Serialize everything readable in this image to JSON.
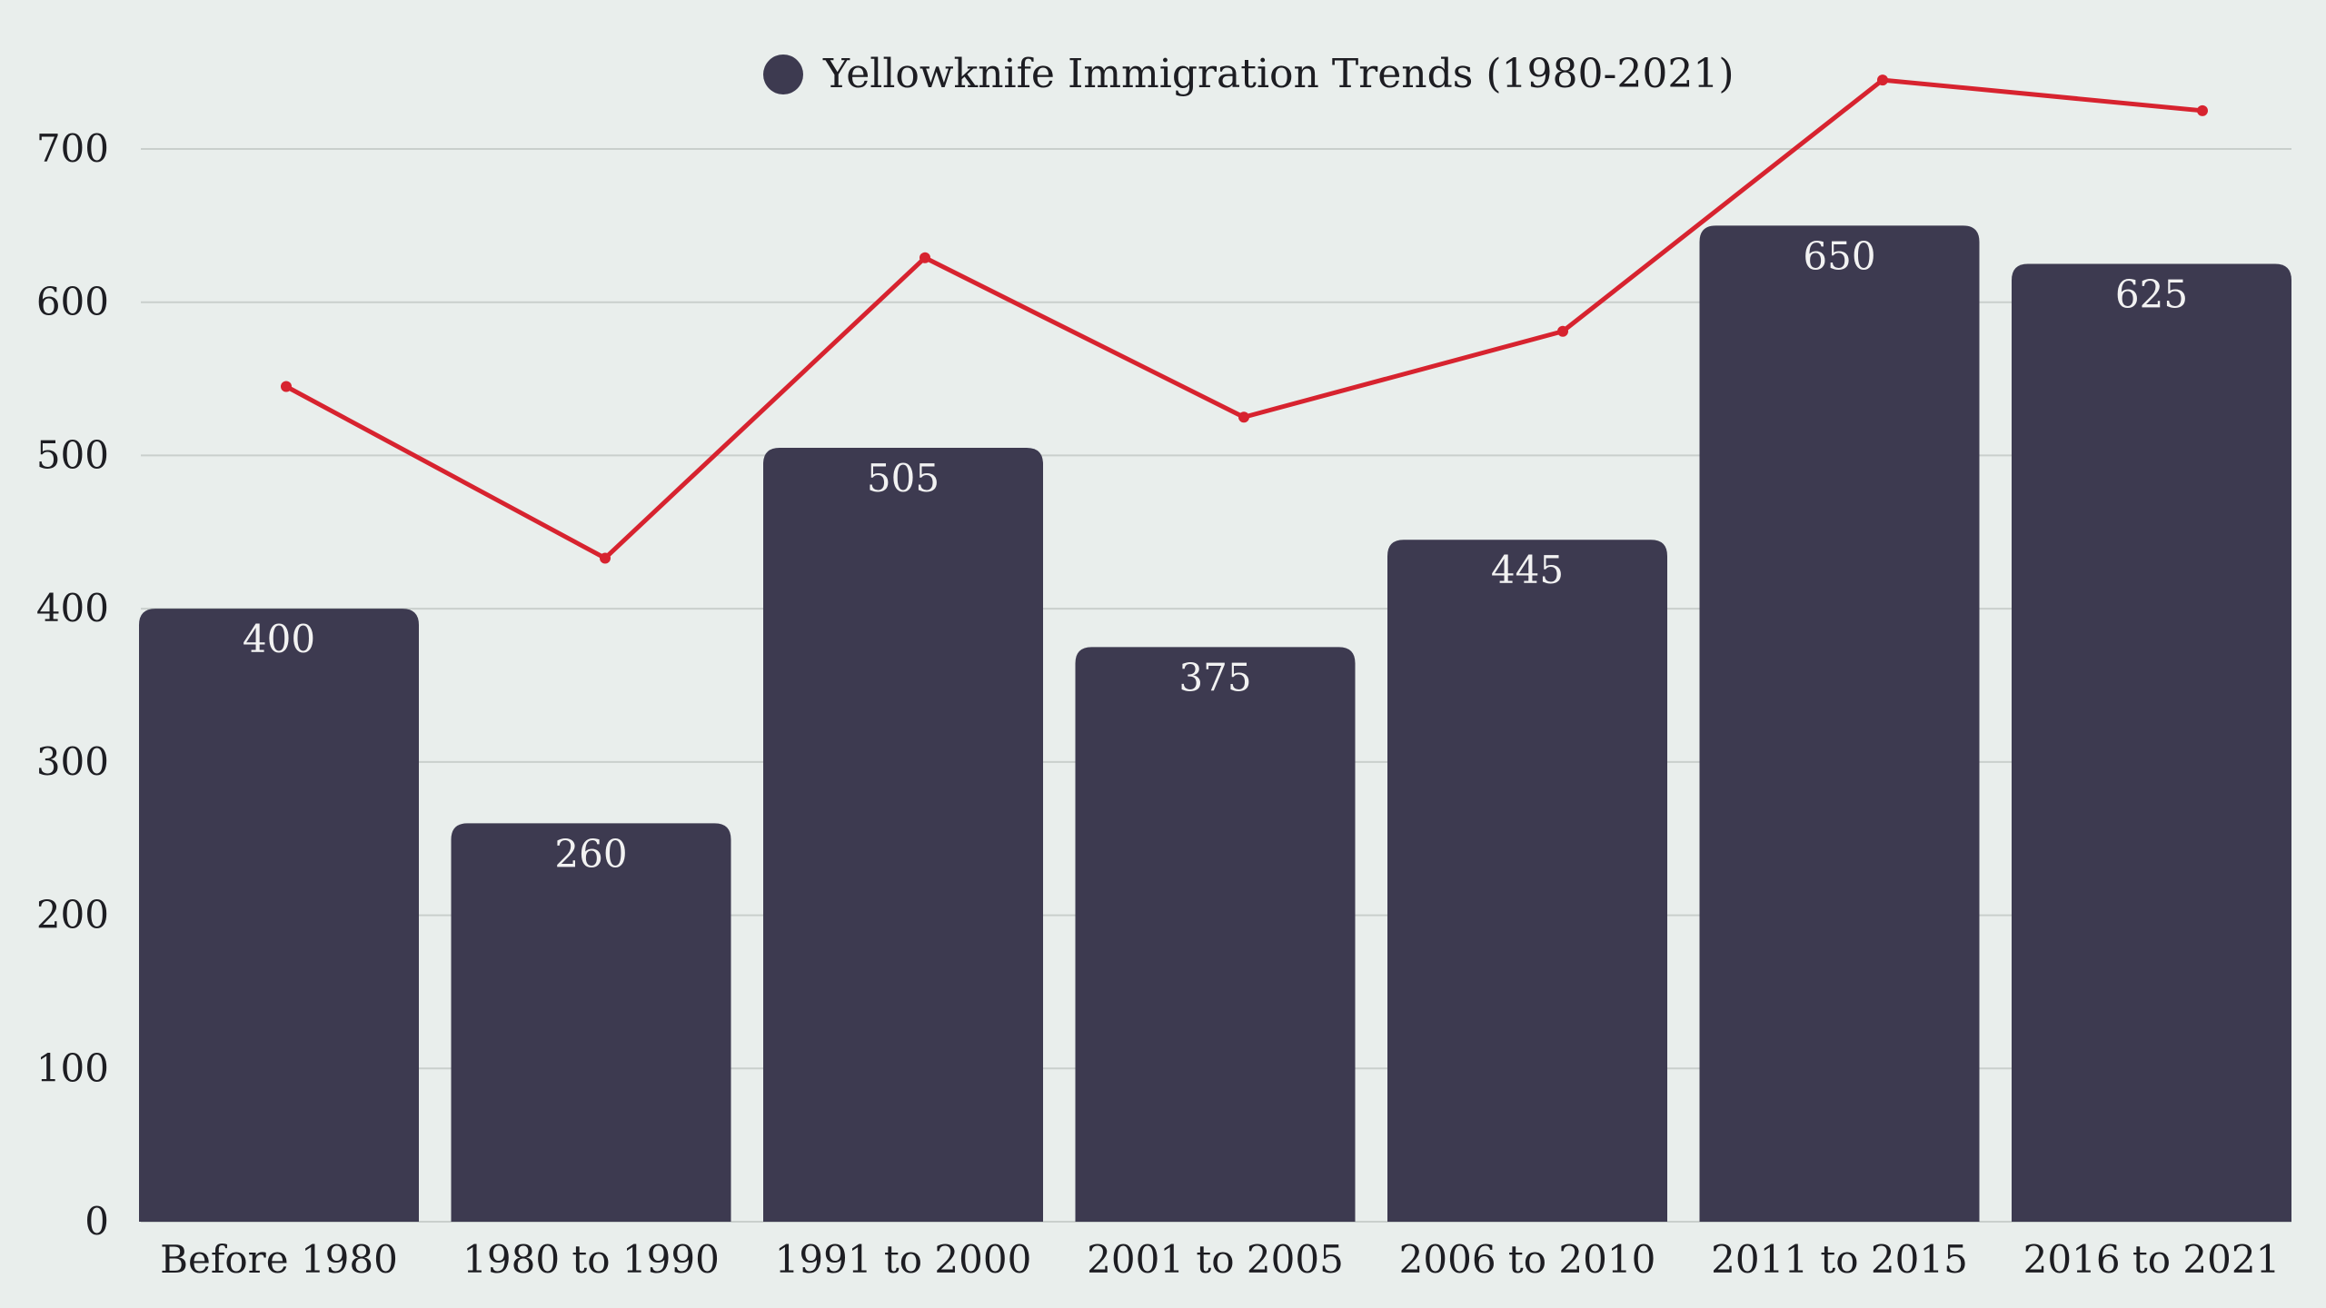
{
  "chart_data": {
    "type": "bar",
    "title": "Yellowknife Immigration Trends (1980-2021)",
    "categories": [
      "Before 1980",
      "1980 to 1990",
      "1991 to 2000",
      "2001 to 2005",
      "2006 to 2010",
      "2011 to 2015",
      "2016 to 2021"
    ],
    "series": [
      {
        "name": "Yellowknife Immigration Trends (1980-2021)",
        "type": "bar",
        "values": [
          400,
          260,
          505,
          375,
          445,
          650,
          625
        ],
        "color": "#3d3a50"
      },
      {
        "name": "",
        "type": "line",
        "values": [
          545,
          433,
          629,
          525,
          581,
          745,
          725
        ],
        "color": "#d7232f"
      }
    ],
    "yticks": [
      0,
      100,
      200,
      300,
      400,
      500,
      600,
      700
    ],
    "ylim": [
      0,
      700
    ],
    "xlabel": "",
    "ylabel": "",
    "grid": true,
    "legend_position": "top-center"
  },
  "colors": {
    "background": "#e9eeec",
    "grid": "#c9cfcc",
    "bar": "#3d3a50",
    "line": "#d7232f",
    "bar_label": "#f2f2f2",
    "text": "#1d1d22"
  }
}
